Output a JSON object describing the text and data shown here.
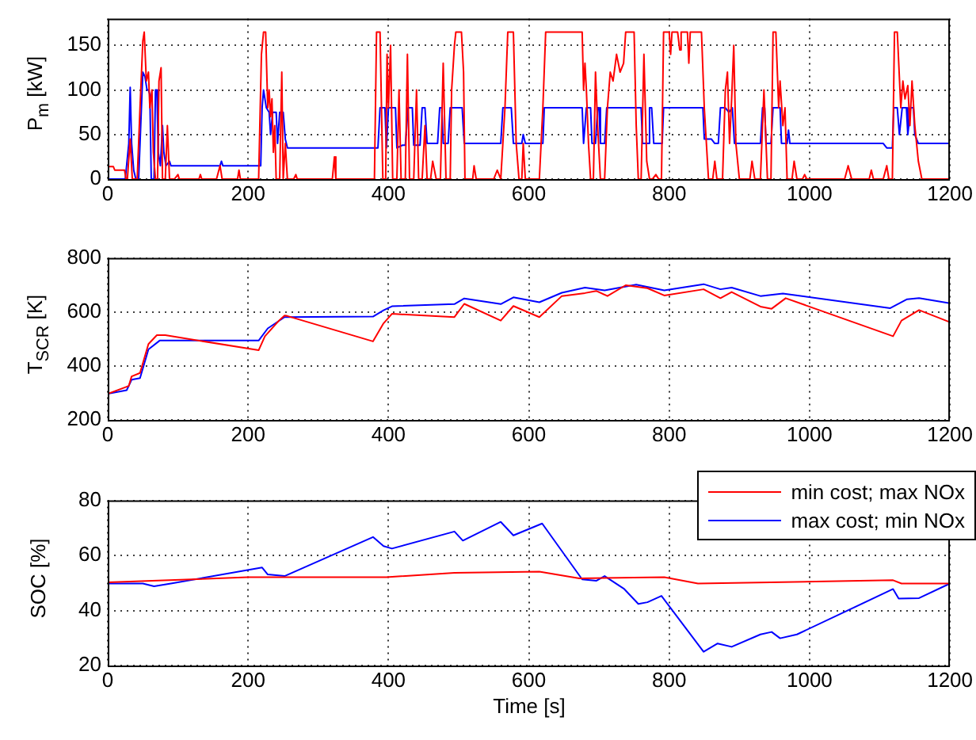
{
  "chart_data": [
    {
      "type": "line",
      "ylabel": "P$_{m}$ [kW]",
      "xlim": [
        0,
        1200
      ],
      "xticks": [
        0,
        200,
        400,
        600,
        800,
        1000,
        1200
      ],
      "ylim": [
        0,
        180
      ],
      "yticks": [
        0,
        50,
        100,
        150
      ],
      "grid": true,
      "marker": "none",
      "line_style": "solid",
      "series": [
        {
          "color": "#ff0000",
          "x": [
            0,
            8,
            10,
            24,
            26,
            28,
            32,
            35,
            42,
            46,
            50,
            52,
            55,
            58,
            60,
            63,
            65,
            68,
            71,
            73,
            76,
            78,
            82,
            85,
            88,
            95,
            100,
            102,
            130,
            132,
            134,
            155,
            160,
            163,
            185,
            187,
            189,
            215,
            219,
            222,
            225,
            228,
            230,
            232,
            234,
            236,
            238,
            240,
            245,
            248,
            250,
            253,
            256,
            265,
            268,
            270,
            320,
            323,
            325,
            380,
            383,
            388,
            392,
            396,
            398,
            400,
            403,
            406,
            412,
            415,
            418,
            424,
            427,
            430,
            436,
            440,
            443,
            448,
            452,
            455,
            460,
            463,
            468,
            474,
            478,
            482,
            488,
            490,
            494,
            496,
            504,
            507,
            509,
            520,
            522,
            525,
            550,
            555,
            560,
            566,
            570,
            578,
            582,
            586,
            590,
            592,
            595,
            615,
            620,
            624,
            676,
            678,
            680,
            682,
            685,
            688,
            692,
            695,
            698,
            702,
            708,
            712,
            716,
            720,
            725,
            730,
            735,
            738,
            750,
            753,
            756,
            760,
            764,
            768,
            772,
            776,
            781,
            785,
            789,
            792,
            800,
            802,
            804,
            812,
            815,
            817,
            826,
            828,
            830,
            846,
            850,
            856,
            862,
            865,
            868,
            876,
            880,
            883,
            886,
            889,
            892,
            895,
            900,
            915,
            918,
            922,
            930,
            935,
            940,
            945,
            948,
            952,
            956,
            958,
            962,
            965,
            968,
            975,
            978,
            982,
            990,
            993,
            996,
            1050,
            1055,
            1060,
            1085,
            1088,
            1091,
            1105,
            1110,
            1113,
            1118,
            1121,
            1125,
            1130,
            1133,
            1136,
            1140,
            1143,
            1146,
            1150,
            1155,
            1160,
            1200
          ],
          "values": [
            14,
            14,
            10,
            10,
            0,
            0,
            45,
            0,
            0,
            80,
            155,
            165,
            110,
            120,
            80,
            100,
            30,
            0,
            0,
            110,
            125,
            0,
            0,
            60,
            0,
            0,
            5,
            0,
            0,
            5,
            0,
            0,
            15,
            0,
            0,
            10,
            0,
            0,
            140,
            165,
            165,
            80,
            100,
            70,
            90,
            30,
            60,
            0,
            0,
            120,
            0,
            40,
            0,
            0,
            5,
            0,
            0,
            25,
            0,
            0,
            165,
            165,
            0,
            0,
            140,
            80,
            150,
            0,
            0,
            100,
            0,
            0,
            140,
            0,
            0,
            100,
            0,
            0,
            60,
            0,
            0,
            20,
            0,
            0,
            130,
            0,
            0,
            100,
            150,
            165,
            165,
            120,
            0,
            0,
            15,
            0,
            0,
            10,
            0,
            80,
            165,
            165,
            40,
            0,
            0,
            40,
            0,
            0,
            80,
            165,
            165,
            100,
            130,
            100,
            40,
            0,
            0,
            120,
            60,
            0,
            0,
            80,
            120,
            110,
            140,
            120,
            130,
            165,
            165,
            60,
            0,
            0,
            140,
            20,
            0,
            0,
            5,
            0,
            0,
            165,
            165,
            140,
            165,
            165,
            145,
            165,
            165,
            130,
            165,
            165,
            80,
            0,
            0,
            20,
            0,
            0,
            100,
            120,
            40,
            90,
            150,
            40,
            0,
            0,
            20,
            0,
            0,
            100,
            0,
            0,
            165,
            165,
            80,
            110,
            60,
            80,
            0,
            0,
            20,
            0,
            0,
            5,
            0,
            0,
            15,
            0,
            0,
            10,
            0,
            0,
            15,
            0,
            0,
            165,
            165,
            80,
            110,
            90,
            105,
            60,
            110,
            60,
            20,
            0,
            0
          ]
        },
        {
          "color": "#0000ff",
          "x": [
            0,
            25,
            30,
            32,
            34,
            37,
            40,
            44,
            47,
            50,
            53,
            56,
            58,
            60,
            62,
            66,
            68,
            70,
            72,
            75,
            78,
            80,
            83,
            88,
            90,
            160,
            162,
            164,
            218,
            220,
            222,
            226,
            230,
            232,
            235,
            240,
            242,
            245,
            250,
            253,
            256,
            385,
            388,
            395,
            397,
            400,
            410,
            412,
            420,
            424,
            428,
            434,
            436,
            440,
            445,
            448,
            452,
            455,
            470,
            473,
            476,
            478,
            485,
            488,
            505,
            508,
            560,
            563,
            575,
            578,
            590,
            592,
            595,
            620,
            622,
            676,
            678,
            682,
            688,
            690,
            695,
            698,
            700,
            702,
            708,
            711,
            760,
            762,
            770,
            772,
            775,
            778,
            790,
            792,
            848,
            850,
            860,
            865,
            870,
            873,
            880,
            885,
            890,
            893,
            930,
            933,
            936,
            938,
            945,
            948,
            958,
            960,
            968,
            970,
            972,
            1105,
            1110,
            1118,
            1120,
            1125,
            1128,
            1132,
            1138,
            1140,
            1144,
            1148,
            1150,
            1155,
            1200
          ],
          "values": [
            0,
            0,
            40,
            103,
            40,
            10,
            0,
            0,
            60,
            120,
            115,
            100,
            100,
            95,
            0,
            0,
            100,
            100,
            30,
            15,
            60,
            30,
            15,
            20,
            15,
            15,
            20,
            15,
            15,
            80,
            100,
            80,
            75,
            50,
            75,
            75,
            40,
            75,
            75,
            45,
            35,
            35,
            80,
            80,
            35,
            80,
            80,
            35,
            38,
            38,
            80,
            80,
            38,
            38,
            38,
            80,
            80,
            40,
            40,
            80,
            80,
            40,
            40,
            80,
            80,
            40,
            40,
            80,
            80,
            40,
            40,
            50,
            40,
            40,
            80,
            80,
            40,
            80,
            80,
            40,
            40,
            80,
            80,
            40,
            40,
            80,
            80,
            40,
            40,
            80,
            80,
            40,
            40,
            80,
            80,
            45,
            45,
            40,
            40,
            80,
            80,
            75,
            80,
            40,
            40,
            80,
            80,
            40,
            40,
            80,
            80,
            40,
            40,
            55,
            40,
            40,
            35,
            35,
            80,
            80,
            50,
            80,
            80,
            50,
            80,
            80,
            50,
            40,
            40
          ]
        }
      ]
    },
    {
      "type": "line",
      "ylabel": "T$_{SCR}$ [K]",
      "xlim": [
        0,
        1200
      ],
      "xticks": [
        0,
        200,
        400,
        600,
        800,
        1000,
        1200
      ],
      "ylim": [
        200,
        800
      ],
      "yticks": [
        200,
        400,
        600,
        800
      ],
      "grid": true,
      "marker": "none",
      "line_style": "solid",
      "series": [
        {
          "color": "#ff0000",
          "x": [
            0,
            30,
            34,
            46,
            58,
            70,
            82,
            215,
            224,
            244,
            252,
            256,
            378,
            393,
            405,
            494,
            508,
            560,
            578,
            615,
            647,
            680,
            696,
            712,
            738,
            769,
            793,
            849,
            873,
            889,
            930,
            946,
            966,
            1119,
            1131,
            1156,
            1200
          ],
          "values": [
            297,
            326,
            361,
            374,
            481,
            514,
            514,
            458,
            510,
            568,
            587,
            585,
            491,
            558,
            593,
            581,
            630,
            568,
            622,
            581,
            659,
            670,
            678,
            659,
            699,
            688,
            661,
            684,
            651,
            674,
            620,
            612,
            651,
            510,
            568,
            607,
            562
          ]
        },
        {
          "color": "#0000ff",
          "x": [
            0,
            27,
            34,
            46,
            58,
            74,
            215,
            228,
            252,
            378,
            393,
            405,
            494,
            508,
            560,
            578,
            615,
            647,
            680,
            708,
            753,
            793,
            849,
            873,
            889,
            930,
            962,
            1115,
            1139,
            1156,
            1200
          ],
          "values": [
            297,
            310,
            349,
            355,
            461,
            494,
            494,
            539,
            581,
            583,
            606,
            621,
            629,
            650,
            629,
            654,
            636,
            671,
            690,
            680,
            701,
            680,
            703,
            684,
            690,
            659,
            668,
            614,
            647,
            651,
            632
          ]
        }
      ]
    },
    {
      "type": "line",
      "xlabel": "Time [s]",
      "ylabel": "SOC [%]",
      "xlim": [
        0,
        1200
      ],
      "xticks": [
        0,
        200,
        400,
        600,
        800,
        1000,
        1200
      ],
      "ylim": [
        20,
        80
      ],
      "yticks": [
        20,
        40,
        60,
        80
      ],
      "grid": true,
      "legend": "top right",
      "marker": "none",
      "line_style": "solid",
      "series": [
        {
          "name": "min cost; max NOx",
          "color": "#ff0000",
          "x": [
            0,
            200,
            397,
            494,
            615,
            672,
            793,
            841,
            1119,
            1131,
            1200
          ],
          "values": [
            50.2,
            52.1,
            52.1,
            53.7,
            54.1,
            51.7,
            52.1,
            49.8,
            51,
            49.8,
            49.8
          ]
        },
        {
          "name": "max cost; min NOx",
          "color": "#0000ff",
          "x": [
            0,
            50,
            66,
            90,
            220,
            228,
            252,
            378,
            393,
            405,
            494,
            506,
            560,
            578,
            619,
            676,
            696,
            708,
            736,
            756,
            769,
            789,
            849,
            869,
            889,
            930,
            946,
            958,
            982,
            1119,
            1127,
            1156,
            1200
          ],
          "values": [
            49.8,
            49.8,
            48.8,
            49.8,
            55.6,
            53.1,
            52.5,
            66.7,
            63.4,
            62.5,
            68.7,
            65.4,
            72.2,
            67.3,
            71.6,
            51.3,
            50.8,
            52.5,
            47.8,
            42.4,
            43,
            45.3,
            25,
            28,
            26.8,
            31.3,
            32.2,
            29.9,
            31.3,
            47.8,
            44.3,
            44.5,
            49.8
          ]
        }
      ]
    }
  ]
}
